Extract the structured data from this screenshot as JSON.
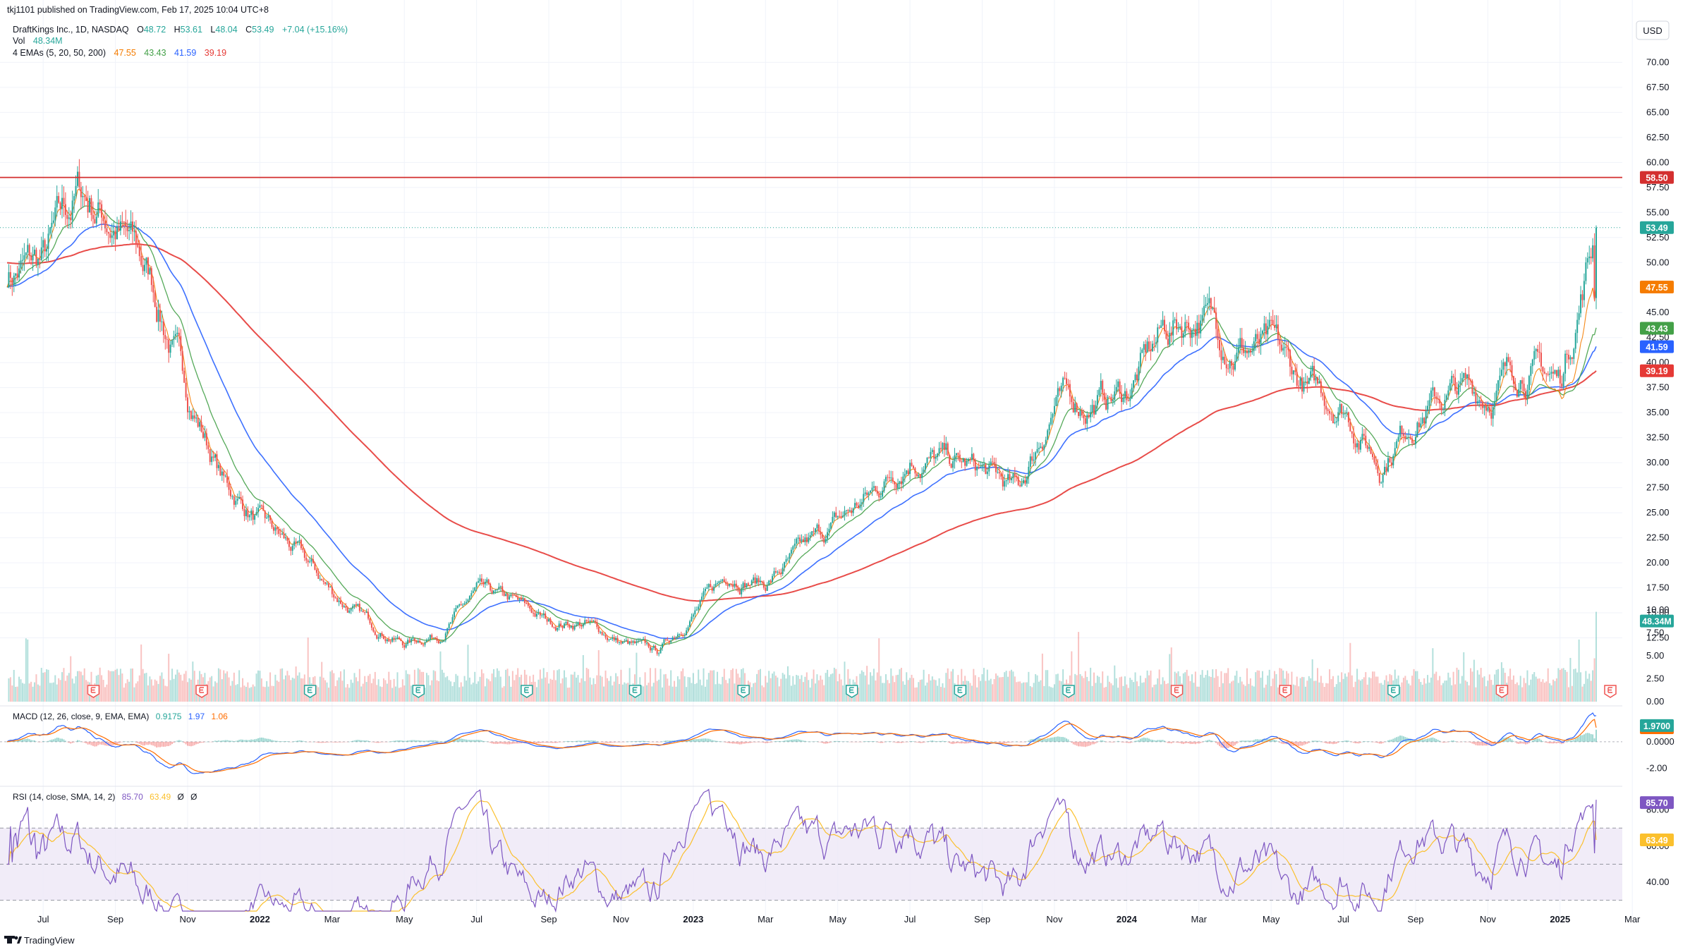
{
  "header": {
    "published": "tkj1101 published on TradingView.com, Feb 17, 2025 10:04 UTC+8",
    "symbol": "DraftKings Inc., 1D, NASDAQ",
    "o_label": "O",
    "o": "48.72",
    "h_label": "H",
    "h": "53.61",
    "l_label": "L",
    "l": "48.04",
    "c_label": "C",
    "c": "53.49",
    "change": "+7.04 (+15.16%)",
    "vol_label": "Vol",
    "vol": "48.34M",
    "ema_label": "4 EMAs (5, 20, 50, 200)",
    "ema_values": [
      "47.55",
      "43.43",
      "41.59",
      "39.19"
    ]
  },
  "currency": "USD",
  "macd_pane": {
    "label": "MACD (12, 26, close, 9, EMA, EMA)",
    "values": [
      "0.9175",
      "1.97",
      "1.06"
    ]
  },
  "rsi_pane": {
    "label": "RSI (14, close, SMA, 14, 2)",
    "values": [
      "85.70",
      "63.49",
      "Ø",
      "Ø"
    ]
  },
  "footer": {
    "brand": "TradingView"
  },
  "colors": {
    "up": "#26a69a",
    "down": "#ef5350",
    "ema5": "#f57c00",
    "ema20": "#43a047",
    "ema50": "#2962ff",
    "ema200": "#e53935",
    "hline": "#d32f2f",
    "macd": "#2962ff",
    "signal": "#ff6d00",
    "rsi": "#7e57c2",
    "rsi_ma": "#fbc02d",
    "rsi_band": "#ede7f6"
  },
  "chart_data": [
    {
      "type": "candlestick",
      "title": "DraftKings Inc., 1D, NASDAQ",
      "x_ticks": [
        "Jul",
        "Sep",
        "Nov",
        "2022",
        "Mar",
        "May",
        "Jul",
        "Sep",
        "Nov",
        "2023",
        "Mar",
        "May",
        "Jul",
        "Sep",
        "Nov",
        "2024",
        "Mar",
        "May",
        "Jul",
        "Sep",
        "Nov",
        "2025",
        "Mar"
      ],
      "y_ticks": [
        "70.00",
        "67.50",
        "65.00",
        "62.50",
        "60.00",
        "57.50",
        "55.00",
        "52.50",
        "50.00",
        "45.00",
        "42.50",
        "40.00",
        "37.50",
        "35.00",
        "32.50",
        "30.00",
        "27.50",
        "25.00",
        "22.50",
        "20.00",
        "17.50",
        "15.00",
        "12.50"
      ],
      "ylim": [
        10,
        72
      ],
      "horizontal_line": {
        "value": 58.5,
        "label": "58.50"
      },
      "last_close": {
        "value": 53.49,
        "label": "53.49"
      },
      "x_months": [
        "2021-06",
        "2021-07",
        "2021-08",
        "2021-09",
        "2021-10",
        "2021-11",
        "2021-12",
        "2022-01",
        "2022-02",
        "2022-03",
        "2022-04",
        "2022-05",
        "2022-06",
        "2022-07",
        "2022-08",
        "2022-09",
        "2022-10",
        "2022-11",
        "2022-12",
        "2023-01",
        "2023-02",
        "2023-03",
        "2023-04",
        "2023-05",
        "2023-06",
        "2023-07",
        "2023-08",
        "2023-09",
        "2023-10",
        "2023-11",
        "2023-12",
        "2024-01",
        "2024-02",
        "2024-03",
        "2024-04",
        "2024-05",
        "2024-06",
        "2024-07",
        "2024-08",
        "2024-09",
        "2024-10",
        "2024-11",
        "2024-12",
        "2025-01",
        "2025-02"
      ],
      "close_monthly": [
        49,
        50,
        57,
        54,
        48,
        37,
        28,
        24,
        21,
        17,
        14,
        12,
        13,
        17,
        16,
        14,
        14,
        12,
        11,
        15,
        19,
        18,
        21,
        24,
        27,
        31,
        30,
        29,
        27,
        36,
        36,
        37,
        43,
        45,
        42,
        41,
        37,
        36,
        30,
        35,
        37,
        37,
        40,
        38,
        53.49
      ],
      "series": [
        {
          "name": "EMA 5",
          "last": 47.55
        },
        {
          "name": "EMA 20",
          "last": 43.43
        },
        {
          "name": "EMA 50",
          "last": 41.59
        },
        {
          "name": "EMA 200",
          "last": 39.19
        }
      ],
      "earnings_markers": [
        {
          "month": "2021-08",
          "result": "down"
        },
        {
          "month": "2021-11",
          "result": "down"
        },
        {
          "month": "2022-02",
          "result": "up"
        },
        {
          "month": "2022-05",
          "result": "up"
        },
        {
          "month": "2022-08",
          "result": "up"
        },
        {
          "month": "2022-11",
          "result": "up"
        },
        {
          "month": "2023-02",
          "result": "up"
        },
        {
          "month": "2023-05",
          "result": "up"
        },
        {
          "month": "2023-08",
          "result": "up"
        },
        {
          "month": "2023-11",
          "result": "up"
        },
        {
          "month": "2024-02",
          "result": "down"
        },
        {
          "month": "2024-05",
          "result": "down"
        },
        {
          "month": "2024-08",
          "result": "up"
        },
        {
          "month": "2024-11",
          "result": "down"
        },
        {
          "month": "2025-02",
          "result": "down"
        }
      ]
    },
    {
      "type": "bar",
      "title": "Vol",
      "y_ticks": [
        "10.00",
        "7.50",
        "5.00",
        "2.50",
        "0.00"
      ],
      "ylim": [
        0,
        10
      ],
      "last": {
        "value": 48.34,
        "label": "48.34M"
      }
    },
    {
      "type": "line",
      "title": "MACD (12, 26, close, 9, EMA, EMA)",
      "y_ticks": [
        "0.0000",
        "-2.00"
      ],
      "ylim": [
        -3.2,
        2.6
      ],
      "series": [
        {
          "name": "MACD",
          "last": 1.97
        },
        {
          "name": "Signal",
          "last": 1.06
        },
        {
          "name": "Histogram",
          "last": 0.9175
        }
      ]
    },
    {
      "type": "line",
      "title": "RSI (14, close, SMA, 14, 2)",
      "y_ticks": [
        "80.00",
        "60.00",
        "40.00"
      ],
      "ylim": [
        24,
        92
      ],
      "bands": [
        30,
        50,
        70
      ],
      "series": [
        {
          "name": "RSI",
          "last": 85.7
        },
        {
          "name": "RSI-based MA",
          "last": 63.49
        }
      ]
    }
  ]
}
